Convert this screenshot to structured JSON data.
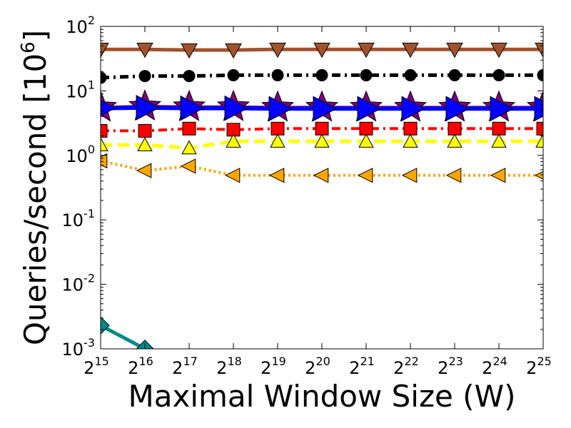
{
  "chart_data": {
    "type": "line",
    "title": "",
    "xlabel": "Maximal Window Size (W)",
    "ylabel": "Queries/second [10",
    "ylabel_sup": "6",
    "ylabel_close": "]",
    "y_scale": "log",
    "ylim": [
      0.001,
      100
    ],
    "x": [
      32768,
      65536,
      131072,
      262144,
      524288,
      1048576,
      2097152,
      4194304,
      8388608,
      16777216,
      33554432
    ],
    "x_ticks": [
      {
        "base": "2",
        "exp": "15"
      },
      {
        "base": "2",
        "exp": "16"
      },
      {
        "base": "2",
        "exp": "17"
      },
      {
        "base": "2",
        "exp": "18"
      },
      {
        "base": "2",
        "exp": "19"
      },
      {
        "base": "2",
        "exp": "20"
      },
      {
        "base": "2",
        "exp": "21"
      },
      {
        "base": "2",
        "exp": "22"
      },
      {
        "base": "2",
        "exp": "23"
      },
      {
        "base": "2",
        "exp": "24"
      },
      {
        "base": "2",
        "exp": "25"
      }
    ],
    "y_ticks": [
      {
        "value": 0.001,
        "base": "10",
        "exp": "-3"
      },
      {
        "value": 0.01,
        "base": "10",
        "exp": "-2"
      },
      {
        "value": 0.1,
        "base": "10",
        "exp": "-1"
      },
      {
        "value": 1,
        "base": "10",
        "exp": "0"
      },
      {
        "value": 10,
        "base": "10",
        "exp": "1"
      },
      {
        "value": 100,
        "base": "10",
        "exp": "2"
      }
    ],
    "grid": false,
    "legend": false,
    "series": [
      {
        "color": "#a0522d",
        "marker": "triangle-down",
        "dash": "solid",
        "width": 5,
        "values": [
          44,
          44,
          43,
          43,
          44,
          44,
          44,
          44,
          44,
          44,
          44
        ]
      },
      {
        "color": "#000000",
        "marker": "circle",
        "dash": "dashdot",
        "width": 5,
        "values": [
          16,
          17,
          17,
          17.5,
          17.5,
          17.5,
          17.5,
          17.5,
          17.5,
          17.5,
          17.5
        ]
      },
      {
        "color": "#800080",
        "marker": "star",
        "dash": "solid",
        "width": 5,
        "values": [
          5.5,
          5.7,
          5.6,
          5.6,
          5.5,
          5.5,
          5.5,
          5.5,
          5.5,
          5.5,
          5.5
        ]
      },
      {
        "color": "#0000ff",
        "marker": "triangle-right",
        "dash": "solid",
        "width": 6,
        "values": [
          5.4,
          5.5,
          5.4,
          5.4,
          5.3,
          5.3,
          5.3,
          5.3,
          5.3,
          5.3,
          5.3
        ]
      },
      {
        "color": "#ff0000",
        "marker": "square",
        "dash": "dashdot",
        "width": 4,
        "values": [
          2.4,
          2.4,
          2.6,
          2.5,
          2.6,
          2.6,
          2.6,
          2.6,
          2.6,
          2.6,
          2.6
        ]
      },
      {
        "color": "#ffff00",
        "marker": "triangle-up",
        "dash": "dashed",
        "width": 5,
        "values": [
          1.45,
          1.45,
          1.3,
          1.65,
          1.65,
          1.65,
          1.65,
          1.65,
          1.65,
          1.65,
          1.65
        ]
      },
      {
        "color": "#ffa500",
        "marker": "triangle-left",
        "dash": "dotted",
        "width": 4,
        "values": [
          0.82,
          0.58,
          0.68,
          0.49,
          0.49,
          0.49,
          0.49,
          0.49,
          0.49,
          0.49,
          0.49
        ]
      },
      {
        "color": "#008b8b",
        "marker": "diamond",
        "dash": "solid",
        "width": 5,
        "values": [
          0.0023,
          0.001,
          null,
          null,
          null,
          null,
          null,
          null,
          null,
          null,
          null
        ]
      }
    ]
  }
}
